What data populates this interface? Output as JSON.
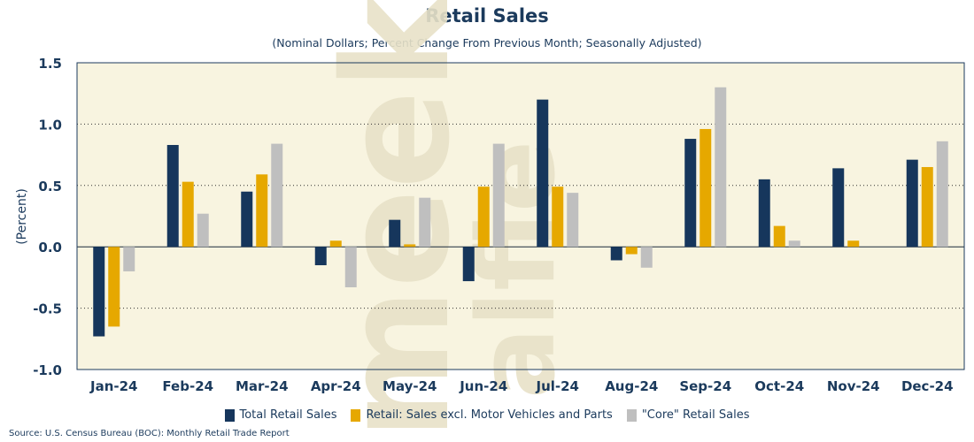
{
  "chart_data": {
    "type": "bar",
    "title": "Retail Sales",
    "subtitle": "(Nominal Dollars; Percent Change From Previous Month; Seasonally Adjusted)",
    "ylabel": "(Percent)",
    "xlabel": "",
    "ylim": [
      -1.0,
      1.5
    ],
    "yticks": [
      -1.0,
      -0.5,
      0.0,
      0.5,
      1.0,
      1.5
    ],
    "ytick_labels": [
      "-1.0",
      "-0.5",
      "0.0",
      "0.5",
      "1.0",
      "1.5"
    ],
    "grid": "horizontal dotted",
    "legend_position": "bottom",
    "categories": [
      "Jan-24",
      "Feb-24",
      "Mar-24",
      "Apr-24",
      "May-24",
      "Jun-24",
      "Jul-24",
      "Aug-24",
      "Sep-24",
      "Oct-24",
      "Nov-24",
      "Dec-24"
    ],
    "series": [
      {
        "name": "Total Retail Sales",
        "color": "#16365c",
        "values": [
          -0.73,
          0.83,
          0.45,
          -0.15,
          0.22,
          -0.28,
          1.2,
          -0.11,
          0.88,
          0.55,
          0.64,
          0.71
        ]
      },
      {
        "name": "Retail: Sales excl. Motor Vehicles and Parts",
        "color": "#e6a800",
        "values": [
          -0.65,
          0.53,
          0.59,
          0.05,
          0.02,
          0.49,
          0.49,
          -0.06,
          0.96,
          0.17,
          0.05,
          0.65
        ]
      },
      {
        "name": "\"Core\" Retail Sales",
        "color": "#bfbfbf",
        "values": [
          -0.2,
          0.27,
          0.84,
          -0.33,
          0.4,
          0.84,
          0.44,
          -0.17,
          1.3,
          0.05,
          0.0,
          0.86
        ]
      }
    ]
  },
  "watermark": "alfie meek",
  "source": "Source: U.S. Census Bureau (BOC): Monthly Retail Trade Report",
  "colors": {
    "plot_background": "#f8f4e0",
    "text": "#1b3a5c"
  }
}
